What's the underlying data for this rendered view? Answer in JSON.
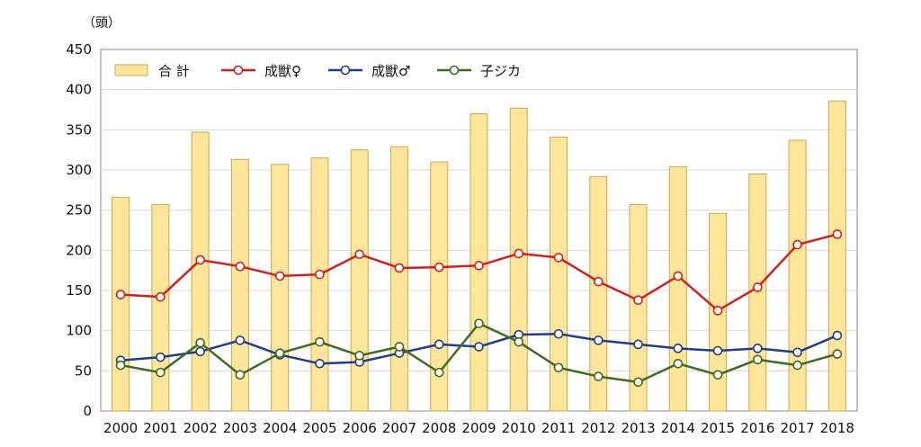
{
  "chart_data": {
    "type": "bar+line",
    "unit_label": "（頭）",
    "categories": [
      "2000",
      "2001",
      "2002",
      "2003",
      "2004",
      "2005",
      "2006",
      "2007",
      "2008",
      "2009",
      "2010",
      "2011",
      "2012",
      "2013",
      "2014",
      "2015",
      "2016",
      "2017",
      "2018"
    ],
    "ylim": [
      0,
      450
    ],
    "yticks": [
      0,
      50,
      100,
      150,
      200,
      250,
      300,
      350,
      400,
      450
    ],
    "grid": "horizontal",
    "legend_position": "top-left",
    "series": [
      {
        "name": "合 計",
        "kind": "bar",
        "color": "#fde59a",
        "edge_color": "#c9a94f",
        "values": [
          266,
          257,
          347,
          313,
          307,
          315,
          325,
          329,
          310,
          370,
          377,
          341,
          292,
          257,
          304,
          246,
          295,
          337,
          386
        ]
      },
      {
        "name": "成獣♀",
        "kind": "line",
        "color": "#d21f1f",
        "values": [
          145,
          142,
          188,
          180,
          168,
          170,
          195,
          178,
          179,
          181,
          196,
          191,
          161,
          138,
          168,
          125,
          154,
          207,
          220
        ]
      },
      {
        "name": "成獣♂",
        "kind": "line",
        "color": "#1f3d8c",
        "values": [
          63,
          67,
          74,
          88,
          70,
          59,
          61,
          72,
          83,
          80,
          95,
          96,
          88,
          83,
          78,
          75,
          78,
          73,
          94
        ]
      },
      {
        "name": "子ジカ",
        "kind": "line",
        "color": "#3f6b1e",
        "values": [
          57,
          48,
          85,
          45,
          72,
          86,
          69,
          80,
          48,
          109,
          86,
          54,
          43,
          36,
          59,
          45,
          64,
          57,
          71
        ]
      }
    ]
  }
}
